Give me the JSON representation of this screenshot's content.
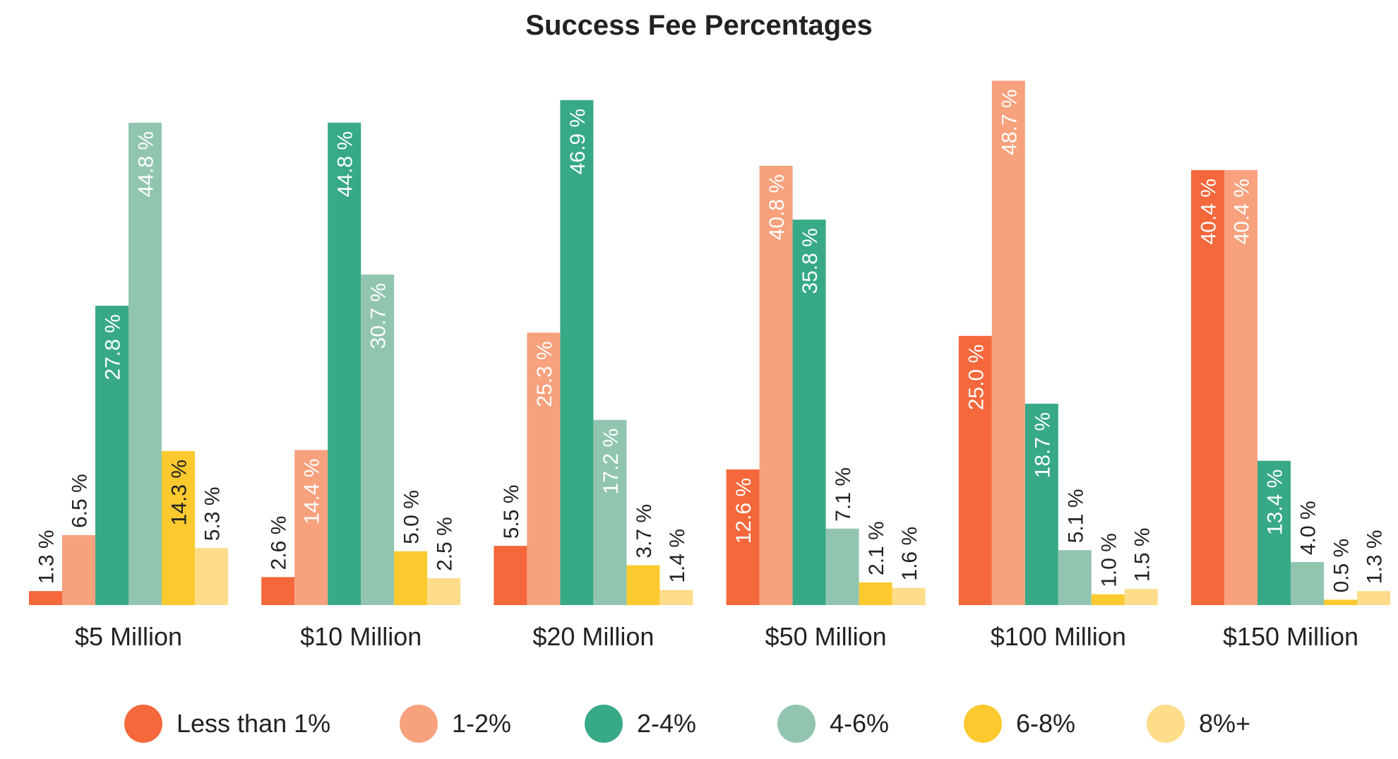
{
  "chart_data": {
    "type": "bar",
    "title": "Success Fee Percentages",
    "xlabel": "",
    "ylabel": "",
    "ylim": [
      0,
      50
    ],
    "grid": false,
    "legend_placement": "bottom",
    "categories": [
      "$5 Million",
      "$10 Million",
      "$20 Million",
      "$50 Million",
      "$100 Million",
      "$150 Million"
    ],
    "series": [
      {
        "name": "Less than 1%",
        "color": "#F4683C",
        "values": [
          1.3,
          2.6,
          5.5,
          12.6,
          25.0,
          40.4
        ]
      },
      {
        "name": "1-2%",
        "color": "#F7A17D",
        "values": [
          6.5,
          14.4,
          25.3,
          40.8,
          48.7,
          40.4
        ]
      },
      {
        "name": "2-4%",
        "color": "#37A987",
        "values": [
          27.8,
          44.8,
          46.9,
          35.8,
          18.7,
          13.4
        ]
      },
      {
        "name": "4-6%",
        "color": "#92C5B0",
        "values": [
          44.8,
          30.7,
          17.2,
          7.1,
          5.1,
          4.0
        ]
      },
      {
        "name": "6-8%",
        "color": "#FCCA2E",
        "values": [
          14.3,
          5.0,
          3.7,
          2.1,
          1.0,
          0.5
        ]
      },
      {
        "name": "8%+",
        "color": "#FDDC8A",
        "values": [
          5.3,
          2.5,
          1.4,
          1.6,
          1.5,
          1.3
        ]
      }
    ],
    "value_label_suffix": " %"
  }
}
